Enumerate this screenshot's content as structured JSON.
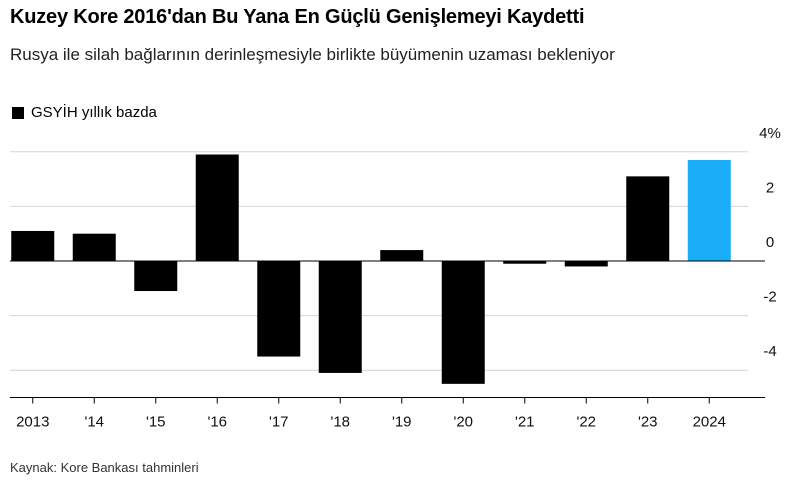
{
  "chart_data": {
    "type": "bar",
    "title": "Kuzey Kore 2016'dan Bu Yana En Güçlü Genişlemeyi Kaydetti",
    "subtitle": "Rusya ile silah bağlarının derinleşmesiyle birlikte büyümenin uzaması bekleniyor",
    "source": "Kaynak: Kore Bankası tahminleri",
    "categories": [
      "2013",
      "'14",
      "'15",
      "'16",
      "'17",
      "'18",
      "'19",
      "'20",
      "'21",
      "'22",
      "'23",
      "2024"
    ],
    "series": [
      {
        "name": "GSYİH yıllık bazda",
        "color": "#000000",
        "values": [
          1.1,
          1.0,
          -1.1,
          3.9,
          -3.5,
          -4.1,
          0.4,
          -4.5,
          -0.1,
          -0.2,
          3.1,
          3.7
        ],
        "colors": [
          "#000000",
          "#000000",
          "#000000",
          "#000000",
          "#000000",
          "#000000",
          "#000000",
          "#000000",
          "#000000",
          "#000000",
          "#000000",
          "#1aadf7"
        ]
      }
    ],
    "ylim": [
      -5,
      4.3
    ],
    "yticks": [
      -4,
      -2,
      0,
      2,
      {
        "value": 4,
        "label": "4%"
      }
    ],
    "grid": true
  }
}
